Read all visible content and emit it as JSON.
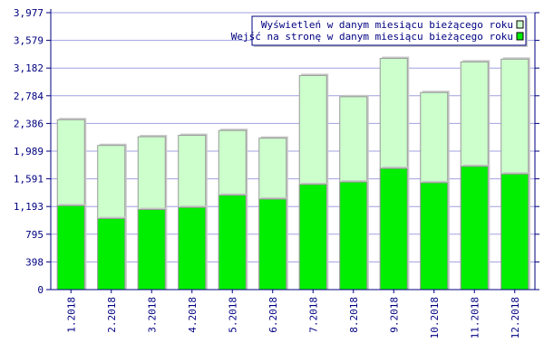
{
  "chart_data": {
    "type": "bar",
    "bar_mode": "overlap",
    "categories": [
      "1.2018",
      "2.2018",
      "3.2018",
      "4.2018",
      "5.2018",
      "6.2018",
      "7.2018",
      "8.2018",
      "9.2018",
      "10.2018",
      "11.2018",
      "12.2018"
    ],
    "series": [
      {
        "name": "Wyświetleń w danym miesiącu bieżącego roku",
        "values": [
          2440,
          2070,
          2195,
          2215,
          2285,
          2175,
          3075,
          2770,
          3320,
          2830,
          3270,
          3310
        ],
        "color": "#ccffcc"
      },
      {
        "name": "Wejść na stronę w danym miesiącu bieżącego roku",
        "values": [
          1205,
          1020,
          1150,
          1180,
          1355,
          1300,
          1510,
          1545,
          1740,
          1535,
          1770,
          1660
        ],
        "color": "#00ee00"
      }
    ],
    "ylim": [
      0,
      3977
    ],
    "yticks": [
      "0",
      "398",
      "795",
      "1,193",
      "1,591",
      "1,989",
      "2,386",
      "2,784",
      "3,182",
      "3,579",
      "3,977"
    ],
    "grid": true,
    "legend_position": "top-right",
    "title": "",
    "xlabel": "",
    "ylabel": "",
    "colors": {
      "axis": "#000080",
      "grid": "#a0a0e0",
      "bar_edge": "#999999"
    }
  }
}
